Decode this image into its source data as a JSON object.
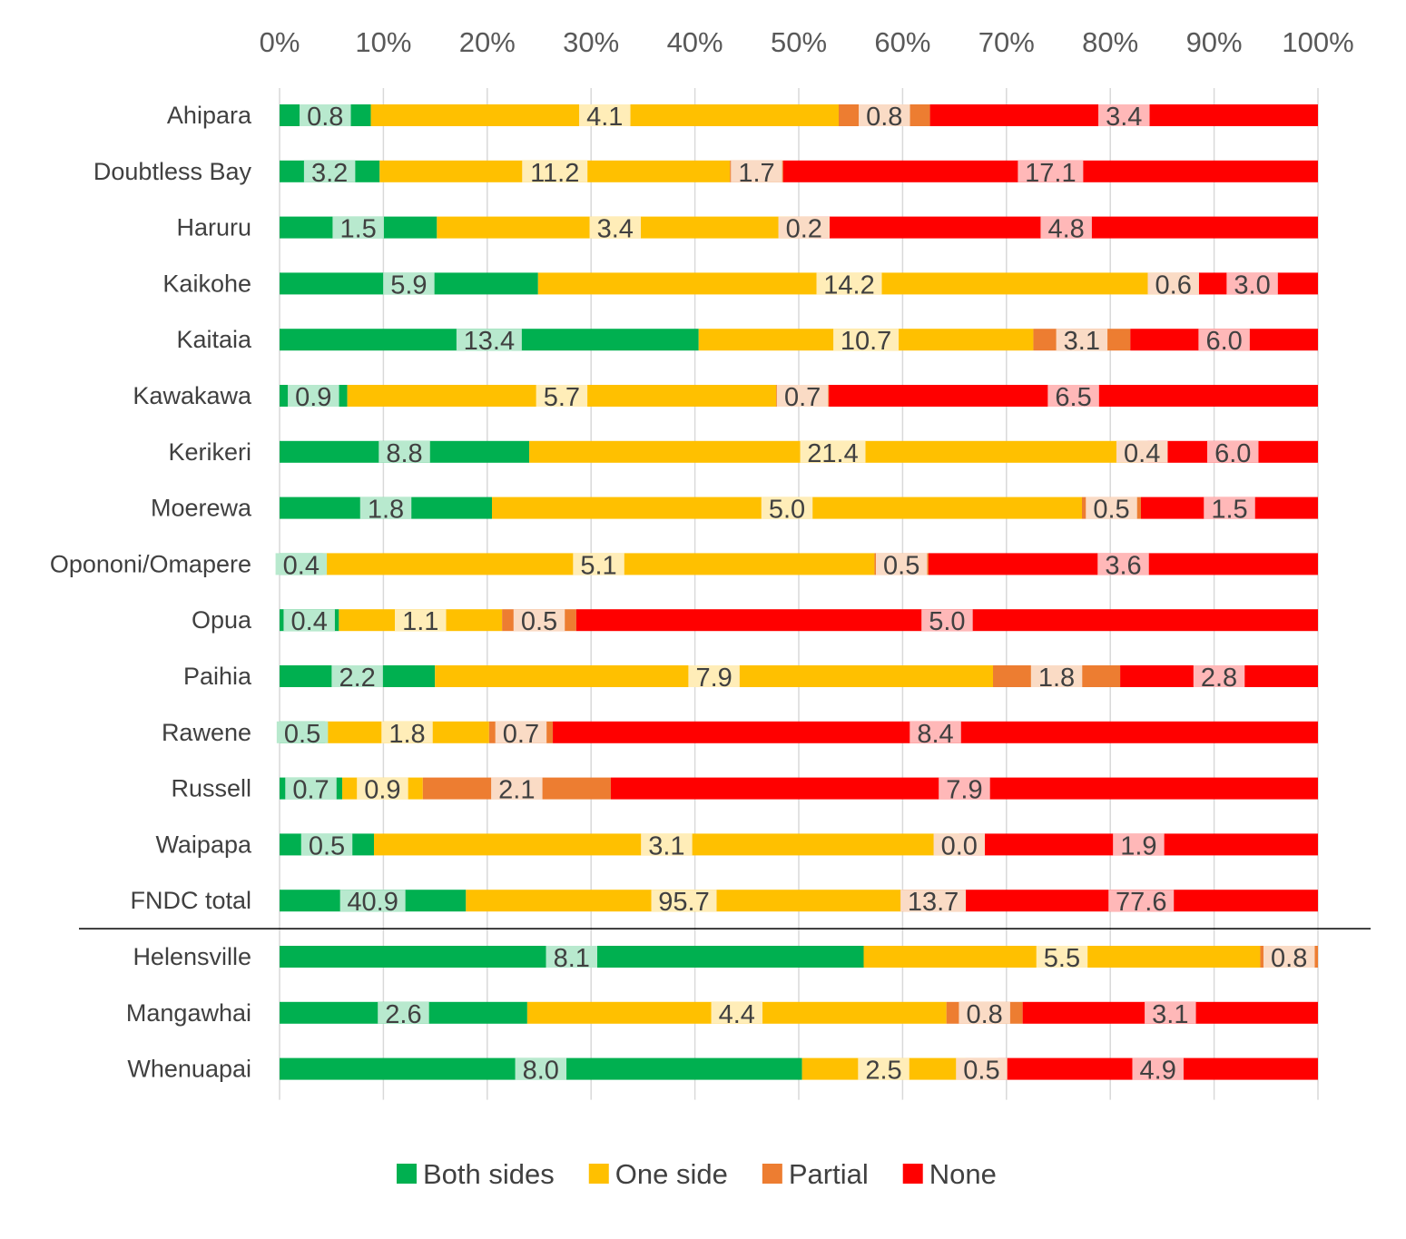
{
  "chart_data": {
    "type": "bar",
    "orientation": "horizontal",
    "stacked": "percent",
    "title": "",
    "xlabel": "",
    "ylabel": "",
    "xlim": [
      0,
      100
    ],
    "x_ticks": [
      "0%",
      "10%",
      "20%",
      "30%",
      "40%",
      "50%",
      "60%",
      "70%",
      "80%",
      "90%",
      "100%"
    ],
    "axis_position": "top",
    "grid": true,
    "legend_position": "bottom",
    "categories": [
      "Ahipara",
      "Doubtless Bay",
      "Haruru",
      "Kaikohe",
      "Kaitaia",
      "Kawakawa",
      "Kerikeri",
      "Moerewa",
      "Opononi/Omapere",
      "Opua",
      "Paihia",
      "Rawene",
      "Russell",
      "Waipapa",
      "FNDC total",
      "Helensville",
      "Mangawhai",
      "Whenuapai"
    ],
    "separator_after_category": "FNDC total",
    "series": [
      {
        "name": "Both sides",
        "color": "#00B050",
        "values": [
          0.8,
          3.2,
          1.5,
          5.9,
          13.4,
          0.9,
          8.8,
          1.8,
          0.4,
          0.4,
          2.2,
          0.5,
          0.7,
          0.5,
          40.9,
          8.1,
          2.6,
          8.0
        ],
        "labels": [
          "0.8",
          "3.2",
          "1.5",
          "5.9",
          "13.4",
          "0.9",
          "8.8",
          "1.8",
          "0.4",
          "0.4",
          "2.2",
          "0.5",
          "0.7",
          "0.5",
          "40.9",
          "8.1",
          "2.6",
          "8.0"
        ]
      },
      {
        "name": "One side",
        "color": "#FFC000",
        "values": [
          4.1,
          11.2,
          3.4,
          14.2,
          10.7,
          5.7,
          21.4,
          5.0,
          5.1,
          1.1,
          7.9,
          1.8,
          0.9,
          3.1,
          95.7,
          5.5,
          4.4,
          2.5
        ],
        "labels": [
          "4.1",
          "11.2",
          "3.4",
          "14.2",
          "10.7",
          "5.7",
          "21.4",
          "5.0",
          "5.1",
          "1.1",
          "7.9",
          "1.8",
          "0.9",
          "3.1",
          "95.7",
          "5.5",
          "4.4",
          "2.5"
        ]
      },
      {
        "name": "Partial",
        "color": "#ED7D31",
        "values": [
          0.8,
          1.7,
          0.2,
          0.6,
          3.1,
          0.7,
          0.4,
          0.5,
          0.5,
          0.5,
          1.8,
          0.7,
          2.1,
          0.0,
          13.7,
          0.8,
          0.8,
          0.5
        ],
        "labels": [
          "0.8",
          "1.7",
          "0.2",
          "0.6",
          "3.1",
          "0.7",
          "0.4",
          "0.5",
          "0.5",
          "0.5",
          "1.8",
          "0.7",
          "2.1",
          "0.0",
          "13.7",
          "0.8",
          "0.8",
          "0.5"
        ]
      },
      {
        "name": "None",
        "color": "#FF0000",
        "values": [
          3.4,
          17.1,
          4.8,
          3.0,
          6.0,
          6.5,
          6.0,
          1.5,
          3.6,
          5.0,
          2.8,
          8.4,
          7.9,
          1.9,
          77.6,
          0.0,
          3.1,
          4.9
        ],
        "labels": [
          "3.4",
          "17.1",
          "4.8",
          "3.0",
          "6.0",
          "6.5",
          "6.0",
          "1.5",
          "3.6",
          "5.0",
          "2.8",
          "8.4",
          "7.9",
          "1.9",
          "77.6",
          "",
          "3.1",
          "4.9"
        ]
      }
    ]
  }
}
